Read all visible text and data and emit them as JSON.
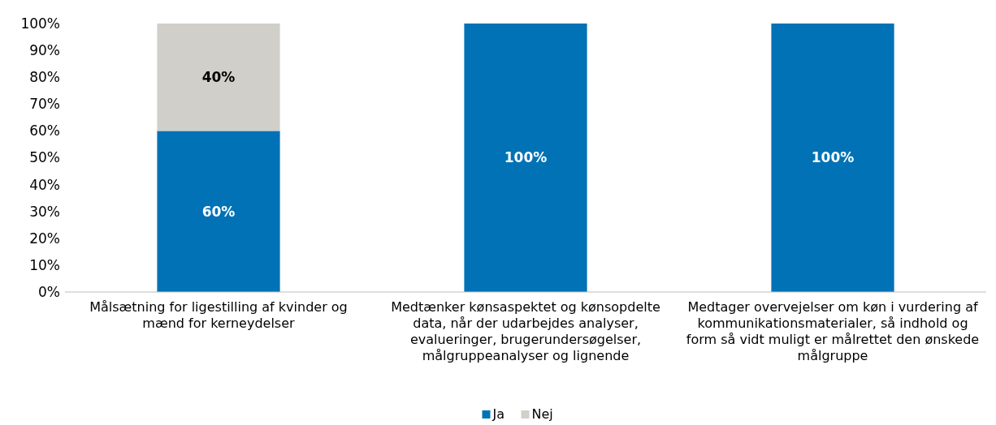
{
  "chart_data": {
    "type": "bar",
    "stacked": true,
    "categories": [
      "Målsætning for ligestilling af kvinder og mænd for kerneydelser",
      "Medtænker kønsaspektet og kønsopdelte data, når der udarbejdes analyser, evalueringer, brugerundersøgelser, målgruppeanalyser og lignende",
      "Medtager overvejelser om køn i vurdering af kommunikationsmaterialer, så indhold og form så vidt muligt er målrettet den ønskede målgruppe"
    ],
    "series": [
      {
        "name": "Ja",
        "color": "#0072b5",
        "values": [
          60,
          100,
          100
        ],
        "value_labels": [
          "60%",
          "100%",
          "100%"
        ]
      },
      {
        "name": "Nej",
        "color": "#d0cfca",
        "values": [
          40,
          0,
          0
        ],
        "value_labels": [
          "40%",
          null,
          null
        ]
      }
    ],
    "ylim": [
      0,
      100
    ],
    "yticks": [
      {
        "value": 0,
        "label": "0%"
      },
      {
        "value": 10,
        "label": "10%"
      },
      {
        "value": 20,
        "label": "20%"
      },
      {
        "value": 30,
        "label": "30%"
      },
      {
        "value": 40,
        "label": "40%"
      },
      {
        "value": 50,
        "label": "50%"
      },
      {
        "value": 60,
        "label": "60%"
      },
      {
        "value": 70,
        "label": "70%"
      },
      {
        "value": 80,
        "label": "80%"
      },
      {
        "value": 90,
        "label": "90%"
      },
      {
        "value": 100,
        "label": "100%"
      }
    ],
    "grid": false,
    "legend": "bottom"
  }
}
